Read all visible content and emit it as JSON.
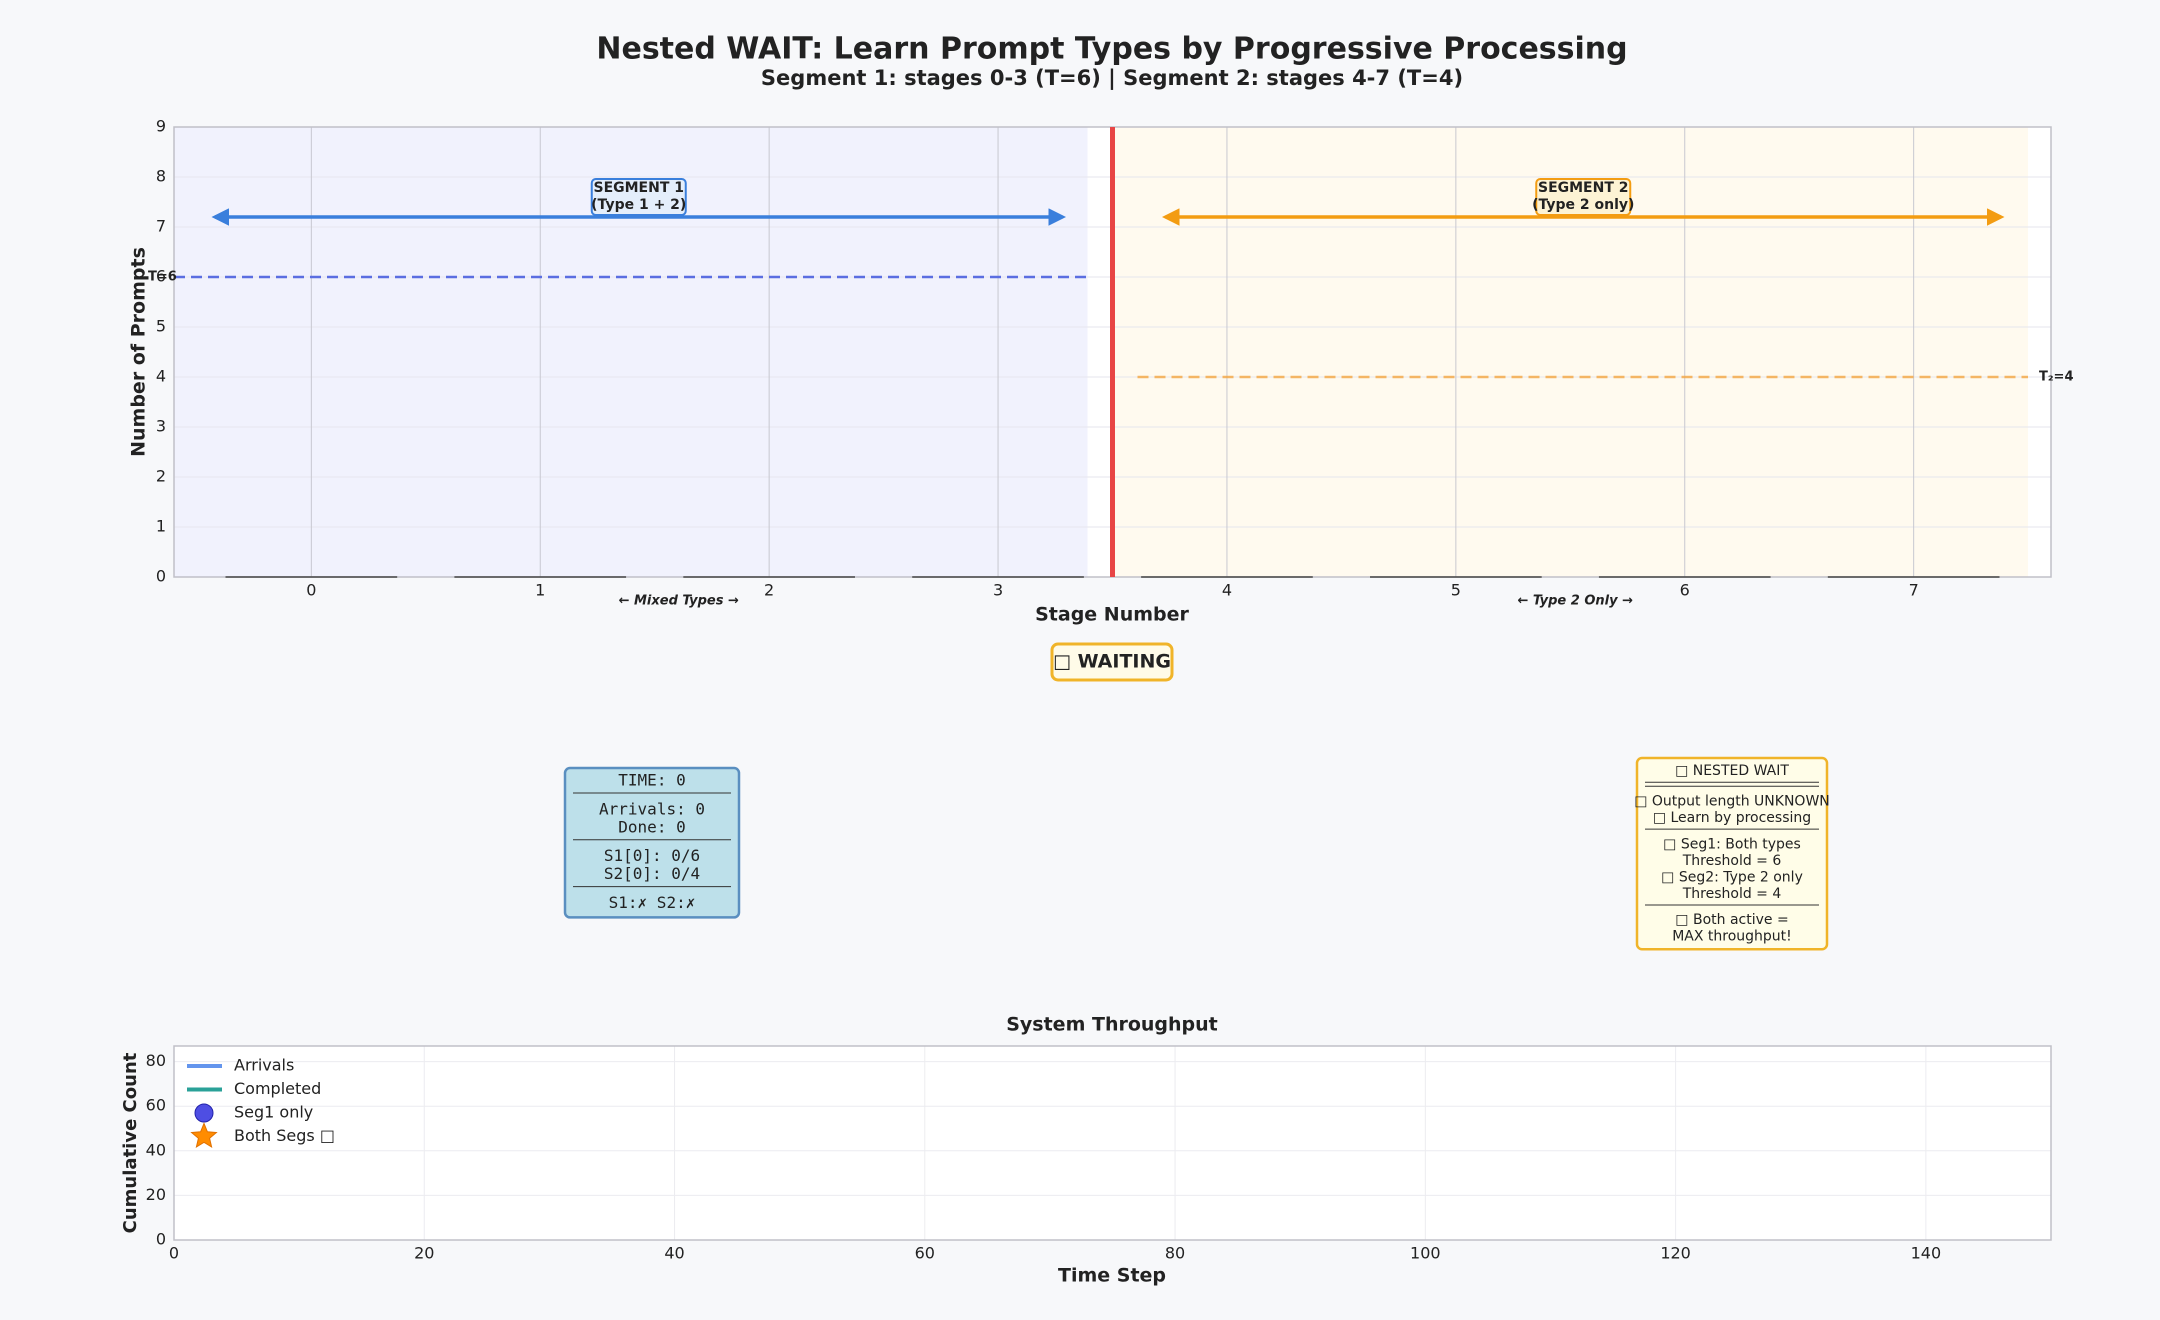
{
  "chart_data": [
    {
      "type": "bar",
      "title": "Nested WAIT: Learn Prompt Types by Progressive Processing",
      "subtitle": "Segment 1: stages 0-3 (T=6) | Segment 2: stages 4-7 (T=4)",
      "x_label": "Stage Number",
      "y_label": "Number of Prompts",
      "x": [
        0,
        1,
        2,
        3,
        4,
        5,
        6,
        7
      ],
      "values": [
        0,
        0,
        0,
        0,
        0,
        0,
        0,
        0
      ],
      "color": "#444444",
      "xlim": [
        -0.6,
        7.6
      ],
      "xticks": [
        0,
        1,
        2,
        3,
        4,
        5,
        6,
        7
      ],
      "ylim": [
        0,
        9
      ],
      "yticks": [
        0,
        1,
        2,
        3,
        4,
        5,
        6,
        7,
        8,
        9
      ],
      "grid": true,
      "divider": 3.5,
      "thresholds": [
        {
          "label": "T=6",
          "value": 6,
          "color": "#5b6ee1"
        },
        {
          "label": "T₂=4",
          "value": 4,
          "color": "#f5a742"
        }
      ],
      "segments": [
        {
          "label": [
            "SEGMENT 1",
            "(Type 1 + 2)"
          ],
          "note": "← Mixed Types →",
          "color": "#3a7fdc"
        },
        {
          "label": [
            "SEGMENT 2",
            "(Type 2 only)"
          ],
          "note": "← Type 2 Only →",
          "color": "#f39c12"
        }
      ]
    },
    {
      "type": "line",
      "title": "System Throughput",
      "x_label": "Time Step",
      "y_label": "Cumulative Count",
      "x": [],
      "series": [
        {
          "name": "Arrivals",
          "color": "#6495ed",
          "marker": "line",
          "values": []
        },
        {
          "name": "Completed",
          "color": "#2aa198",
          "marker": "line",
          "values": []
        },
        {
          "name": "Seg1 only",
          "color": "#3b3be0",
          "marker": "circle",
          "values": []
        },
        {
          "name": "Both Segs □",
          "color": "#ff8c00",
          "marker": "star",
          "values": []
        }
      ],
      "xlim": [
        0,
        150
      ],
      "xticks": [
        0,
        20,
        40,
        60,
        80,
        100,
        120,
        140
      ],
      "ylim": [
        0,
        87
      ],
      "yticks": [
        0,
        20,
        40,
        60,
        80
      ],
      "grid": true,
      "legend": "upper left"
    }
  ],
  "status_badge": "□ WAITING",
  "status_panel": [
    [
      "TIME: 0"
    ],
    [
      "Arrivals: 0",
      "Done: 0"
    ],
    [
      "S1[0]: 0/6",
      "S2[0]: 0/4"
    ],
    [
      "S1:✗ S2:✗"
    ]
  ],
  "info_panel": [
    [
      "□ NESTED WAIT"
    ],
    [
      "□ Output length UNKNOWN",
      "□ Learn by processing"
    ],
    [
      "□ Seg1: Both types",
      "Threshold = 6",
      "□ Seg2: Type 2 only",
      "Threshold = 4"
    ],
    [
      "□ Both active =",
      "MAX throughput!"
    ]
  ]
}
